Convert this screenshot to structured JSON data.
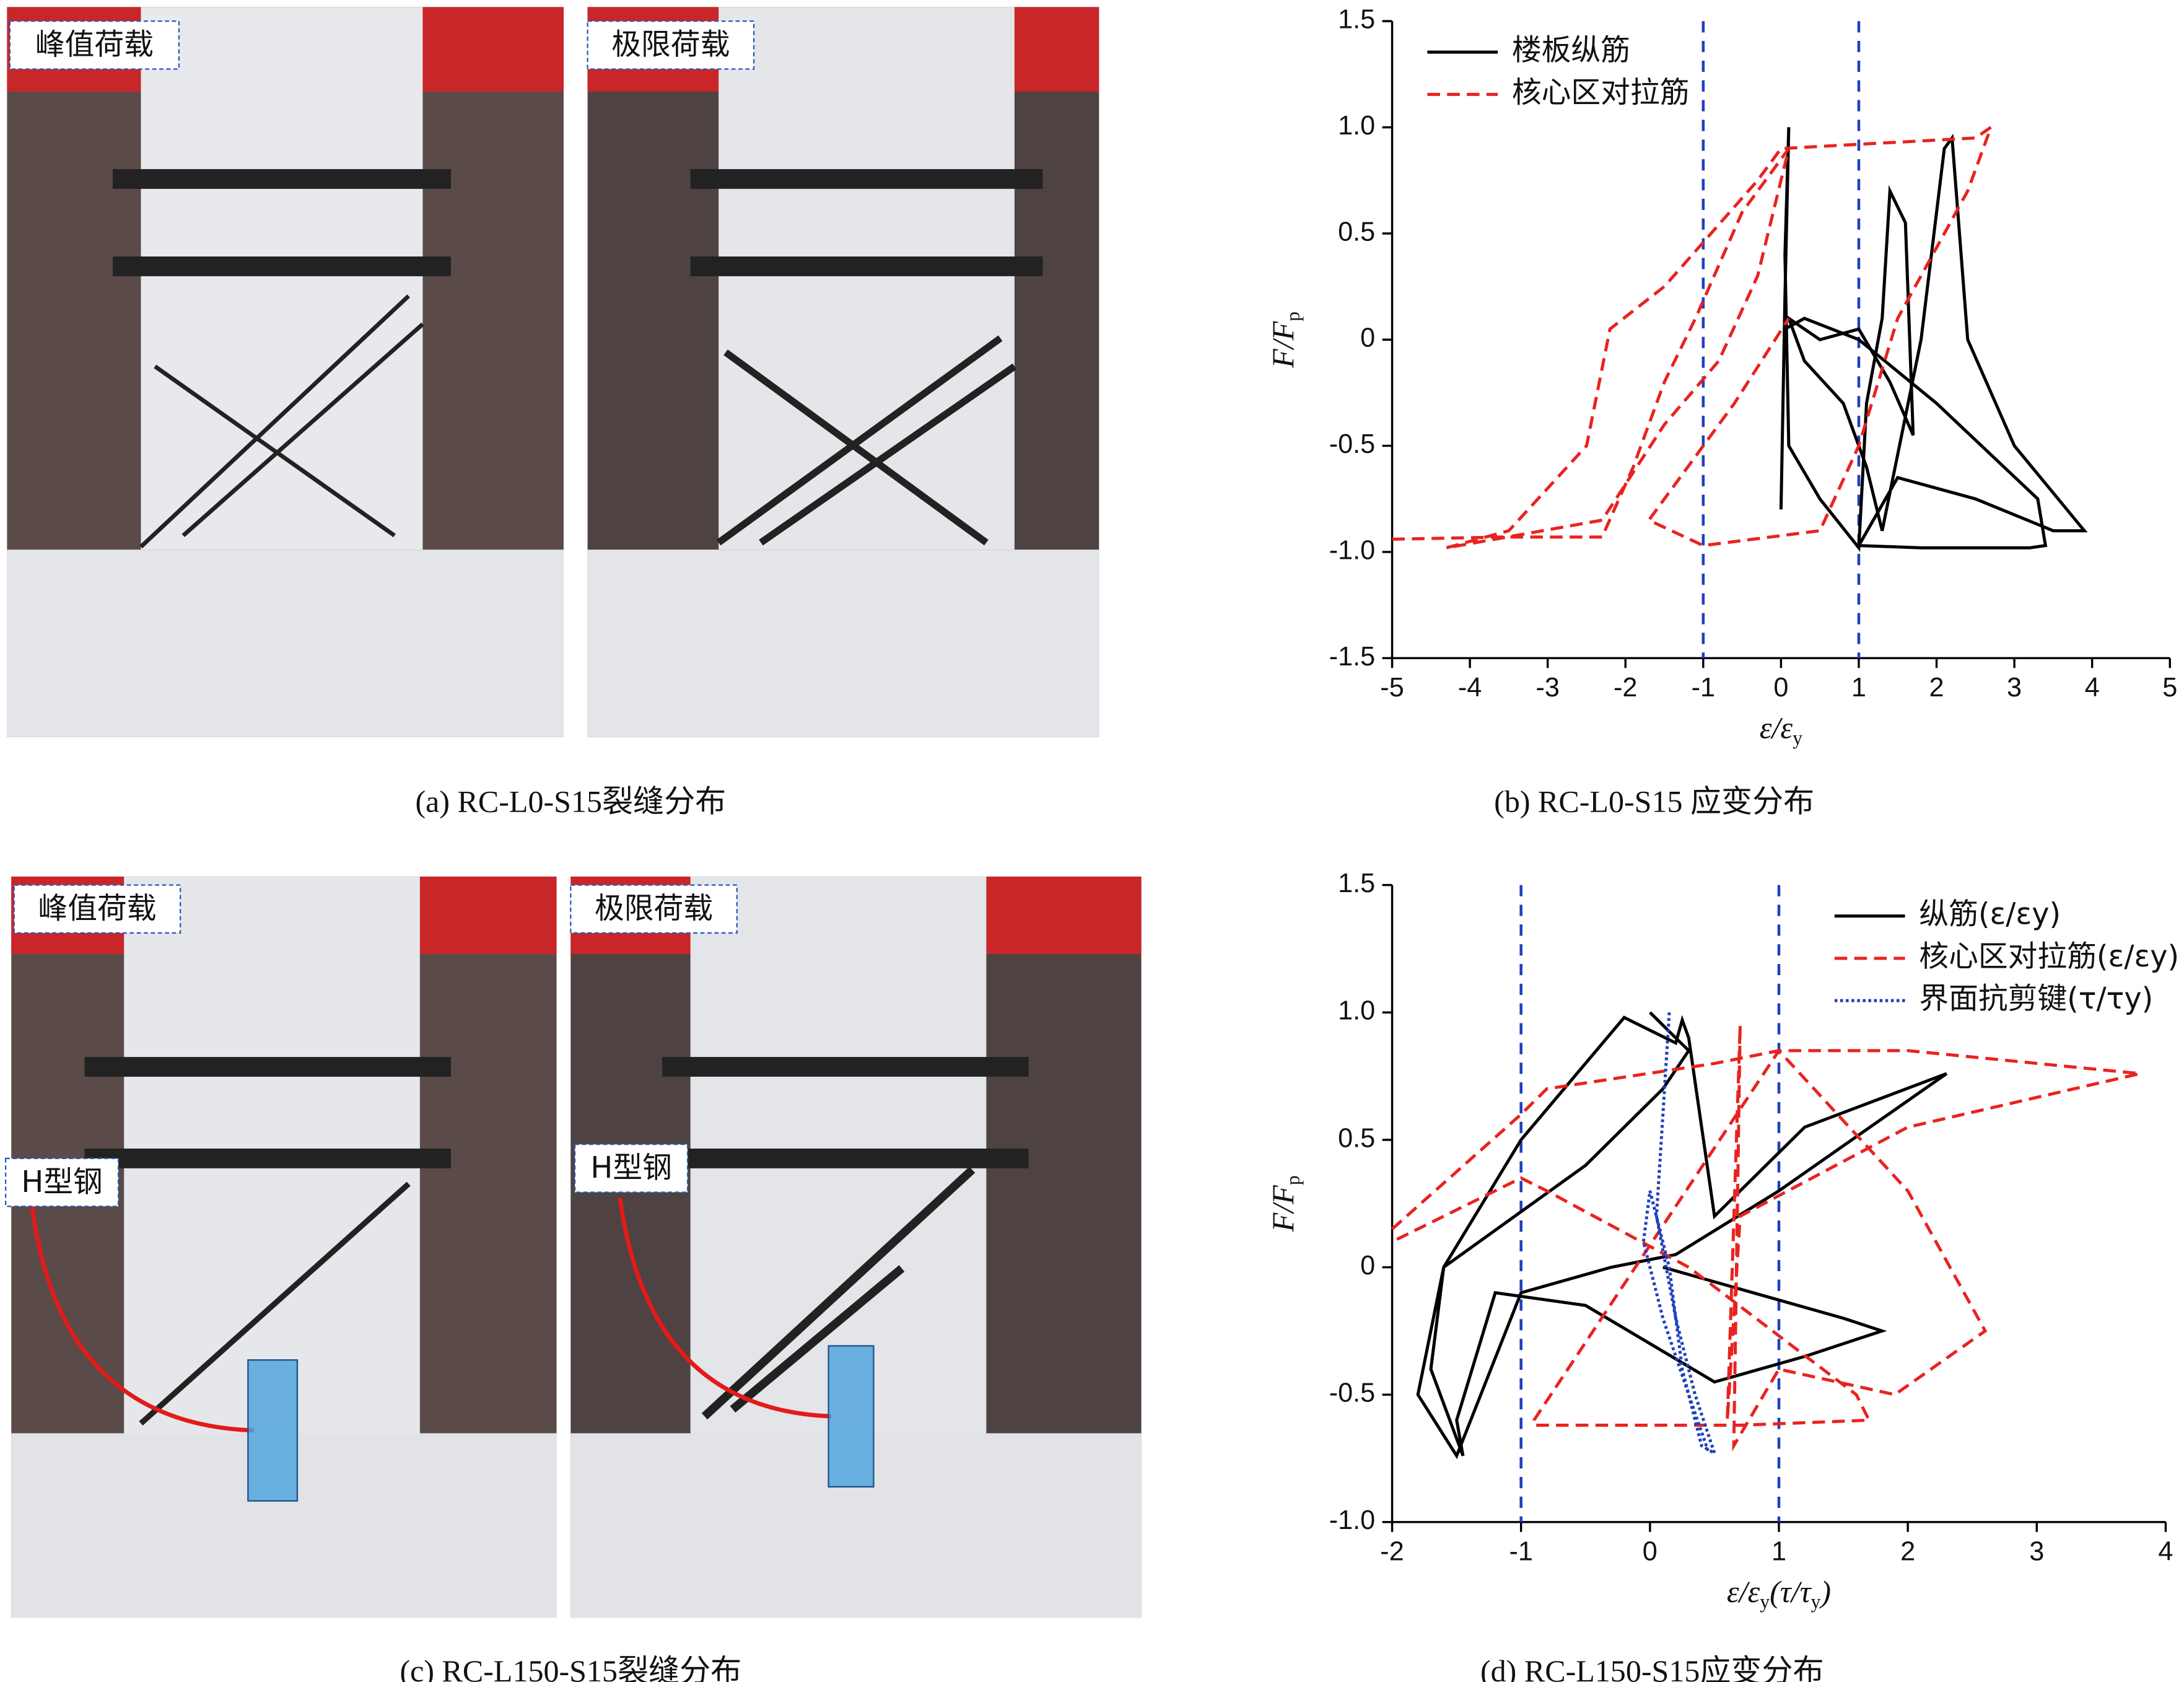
{
  "photos": [
    {
      "caption": "(a) RC-L0-S15裂缝分布",
      "labels": [
        "峰值荷载",
        "极限荷载"
      ]
    },
    {
      "caption": "(c) RC-L150-S15裂缝分布",
      "labels": [
        "峰值荷载",
        "极限荷载",
        "H型钢",
        "H型钢"
      ]
    }
  ],
  "chart_data": [
    {
      "type": "line",
      "caption": "(b) RC-L0-S15 应变分布",
      "xlabel": [
        "ε/ε",
        "y"
      ],
      "ylabel": [
        "F/F",
        "p"
      ],
      "xlim": [
        -5,
        5
      ],
      "xticks": [
        -5,
        -4,
        -3,
        -2,
        -1,
        0,
        1,
        2,
        3,
        4,
        5
      ],
      "ylim": [
        -1.5,
        1.5
      ],
      "yticks": [
        {
          "value": -1.5,
          "label": "-1.5"
        },
        {
          "value": -1,
          "label": "-1.0"
        },
        {
          "value": -0.5,
          "label": "-0.5"
        },
        0,
        {
          "value": 0.5,
          "label": "0.5"
        },
        {
          "value": 1,
          "label": "1.0"
        },
        {
          "value": 1.5,
          "label": "1.5"
        }
      ],
      "vlines": [
        -1,
        1
      ],
      "vline_color": "#1f3fbf",
      "legend": "upper left",
      "series": [
        {
          "name": "楼板纵筋",
          "color": "#000000",
          "style": "solid",
          "x": [
            0.0,
            0.05,
            0.1,
            0.05,
            0.1,
            0.5,
            1.0,
            1.1,
            1.3,
            1.4,
            1.6,
            1.7,
            1.4,
            1.0,
            0.5,
            0.1,
            0.3,
            0.8,
            1.1,
            1.3,
            1.8,
            2.1,
            2.2,
            2.4,
            3.0,
            3.9,
            3.5,
            2.5,
            1.5,
            1.0,
            1.8,
            3.2,
            3.4,
            3.3,
            2.0,
            1.0,
            0.3,
            0.05
          ],
          "values": [
            -0.8,
            0.2,
            1.0,
            0.4,
            -0.5,
            -0.75,
            -0.98,
            -0.3,
            0.1,
            0.7,
            0.55,
            -0.45,
            -0.2,
            0.05,
            0.0,
            0.1,
            -0.1,
            -0.3,
            -0.6,
            -0.9,
            0.0,
            0.9,
            0.95,
            0.0,
            -0.5,
            -0.9,
            -0.9,
            -0.75,
            -0.65,
            -0.97,
            -0.98,
            -0.98,
            -0.97,
            -0.75,
            -0.3,
            0.0,
            0.1,
            0.05
          ]
        },
        {
          "name": "核心区对拉筋",
          "color": "#e8231f",
          "style": "dashed",
          "x": [
            -5,
            -3.6,
            -2.3,
            -1.9,
            -1.5,
            -1.1,
            -0.5,
            0.0,
            0.1,
            -0.3,
            -0.8,
            -1.5,
            -2.3,
            -4.3,
            -3.5,
            -2.5,
            -2.2,
            -1.5,
            -0.9,
            -0.3,
            0.0,
            1.0,
            2.5,
            2.7,
            2.4,
            1.5,
            1.0,
            0.5,
            -1.0,
            -1.7,
            -1.2,
            -0.6,
            0.1
          ],
          "values": [
            -0.94,
            -0.93,
            -0.93,
            -0.6,
            -0.2,
            0.1,
            0.6,
            0.85,
            0.9,
            0.3,
            -0.1,
            -0.4,
            -0.85,
            -0.98,
            -0.9,
            -0.5,
            0.05,
            0.25,
            0.5,
            0.75,
            0.9,
            0.92,
            0.95,
            1.0,
            0.7,
            0.1,
            -0.5,
            -0.9,
            -0.97,
            -0.85,
            -0.6,
            -0.3,
            0.1
          ]
        }
      ]
    },
    {
      "type": "line",
      "caption": "(d) RC-L150-S15应变分布",
      "xlabel": [
        "ε/ε",
        "y",
        "(τ/τ",
        "y",
        ")"
      ],
      "ylabel": [
        "F/F",
        "p"
      ],
      "xlim": [
        -2,
        4
      ],
      "xticks": [
        -2,
        -1,
        0,
        1,
        2,
        3,
        4
      ],
      "ylim": [
        -1,
        1.5
      ],
      "yticks": [
        {
          "value": -1,
          "label": "-1.0"
        },
        {
          "value": -0.5,
          "label": "-0.5"
        },
        0,
        {
          "value": 0.5,
          "label": "0.5"
        },
        {
          "value": 1,
          "label": "1.0"
        },
        {
          "value": 1.5,
          "label": "1.5"
        }
      ],
      "vlines": [
        -1,
        1
      ],
      "vline_color": "#1f3fbf",
      "legend": "upper right",
      "series": [
        {
          "name": "纵筋(ε/εy)",
          "color": "#000000",
          "style": "solid",
          "x": [
            0.0,
            0.2,
            0.3,
            0.1,
            -0.5,
            -1.6,
            -1.8,
            -1.5,
            -1.0,
            -0.3,
            0.2,
            1.0,
            2.3,
            1.2,
            0.5,
            0.3,
            0.25,
            0.2,
            -0.2,
            -1.0,
            -1.6,
            -1.7,
            -1.45,
            -1.5,
            -1.2,
            -0.5,
            0.0,
            0.5,
            1.2,
            1.8,
            1.5,
            0.8,
            0.1
          ],
          "values": [
            1.0,
            0.9,
            0.85,
            0.7,
            0.4,
            0.0,
            -0.5,
            -0.74,
            -0.1,
            0.0,
            0.05,
            0.3,
            0.76,
            0.55,
            0.2,
            0.9,
            0.97,
            0.88,
            0.98,
            0.5,
            0.0,
            -0.4,
            -0.74,
            -0.6,
            -0.1,
            -0.15,
            -0.3,
            -0.45,
            -0.35,
            -0.25,
            -0.2,
            -0.1,
            0.0
          ]
        },
        {
          "name": "核心区对拉筋(ε/εy)",
          "color": "#e8231f",
          "style": "dashed",
          "x": [
            -2,
            -1.0,
            -0.8,
            0.5,
            1.0,
            2.0,
            3.8,
            2.0,
            0.7,
            0.6,
            0.7,
            0.65,
            1.0,
            1.9,
            2.6,
            2.0,
            1.0,
            -0.9,
            -0.9,
            -0.5,
            0.0,
            0.7,
            1.7,
            1.6,
            0.3,
            -0.8,
            -1.0,
            -2.0
          ],
          "values": [
            0.15,
            0.6,
            0.7,
            0.8,
            0.85,
            0.85,
            0.76,
            0.55,
            0.2,
            -0.6,
            0.95,
            -0.7,
            -0.4,
            -0.5,
            -0.25,
            0.3,
            0.85,
            -0.6,
            -0.62,
            -0.62,
            -0.62,
            -0.62,
            -0.6,
            -0.5,
            0.0,
            0.3,
            0.35,
            0.1
          ]
        },
        {
          "name": "界面抗剪键(τ/τy)",
          "color": "#1f3fbf",
          "style": "dotted",
          "x": [
            0.15,
            0.1,
            0.05,
            0.2,
            0.35,
            0.5,
            0.4,
            0.25,
            0.15,
            0.0,
            -0.05,
            0.1,
            0.3,
            0.45
          ],
          "values": [
            1.0,
            0.6,
            0.2,
            -0.2,
            -0.5,
            -0.73,
            -0.7,
            -0.4,
            0.0,
            0.3,
            0.1,
            -0.2,
            -0.5,
            -0.72
          ]
        }
      ]
    }
  ]
}
